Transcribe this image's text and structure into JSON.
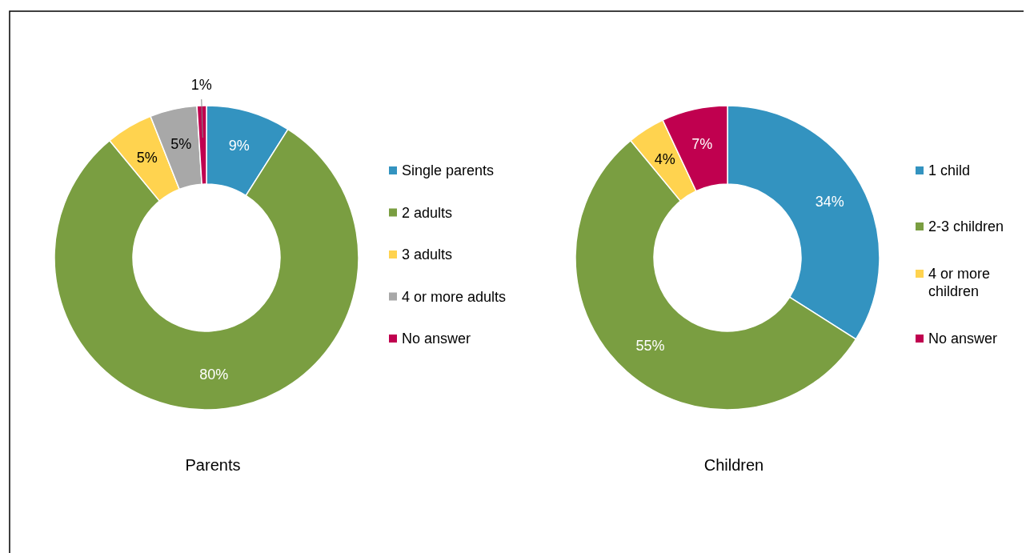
{
  "chart_data": [
    {
      "type": "donut",
      "title": "Parents",
      "categories": [
        "Single parents",
        "2 adults",
        "3 adults",
        "4 or more adults",
        "No answer"
      ],
      "values": [
        9,
        80,
        5,
        5,
        1
      ],
      "colors": [
        "#3393c0",
        "#7a9e41",
        "#ffd34f",
        "#a8a8a8",
        "#c0004f"
      ],
      "value_labels": [
        "9%",
        "80%",
        "5%",
        "5%",
        "1%"
      ],
      "legend": "right"
    },
    {
      "type": "donut",
      "title": "Children",
      "categories": [
        "1 child",
        "2-3 children",
        "4 or more children",
        "No answer"
      ],
      "values": [
        34,
        55,
        4,
        7
      ],
      "colors": [
        "#3393c0",
        "#7a9e41",
        "#ffd34f",
        "#c0004f"
      ],
      "value_labels": [
        "34%",
        "55%",
        "4%",
        "7%"
      ],
      "legend": "right"
    }
  ]
}
